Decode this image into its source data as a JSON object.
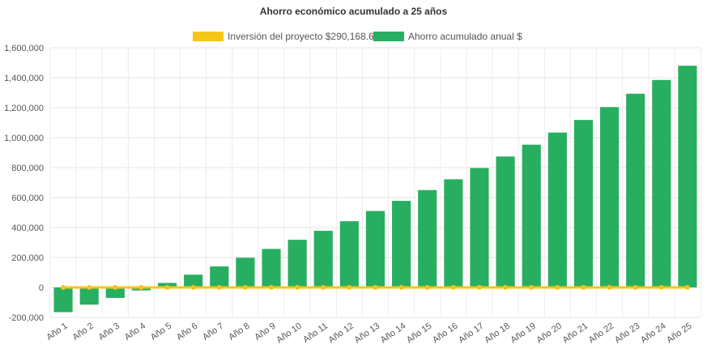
{
  "chart_data": {
    "type": "bar",
    "title": "Ahorro económico acumulado a 25 años",
    "categories": [
      "Año 1",
      "Año 2",
      "Año 3",
      "Año 4",
      "Año 5",
      "Año 6",
      "Año 7",
      "Año 8",
      "Año 9",
      "Año 10",
      "Año 11",
      "Año 12",
      "Año 13",
      "Año 14",
      "Año 15",
      "Año 16",
      "Año 17",
      "Año 18",
      "Año 19",
      "Año 20",
      "Año 21",
      "Año 22",
      "Año 23",
      "Año 24",
      "Año 25"
    ],
    "series": [
      {
        "name": "Inversión del proyecto $290,168.61",
        "kind": "line",
        "color": "#f5c518",
        "values": [
          0,
          0,
          0,
          0,
          0,
          0,
          0,
          0,
          0,
          0,
          0,
          0,
          0,
          0,
          0,
          0,
          0,
          0,
          0,
          0,
          0,
          0,
          0,
          0,
          0
        ]
      },
      {
        "name": "Ahorro acumulado anual $",
        "kind": "bar",
        "color": "#27ae60",
        "values": [
          -165000,
          -115000,
          -70000,
          -20000,
          30000,
          85000,
          140000,
          198000,
          257000,
          318000,
          378000,
          442000,
          510000,
          578000,
          650000,
          722000,
          797000,
          874000,
          953000,
          1034000,
          1118000,
          1204000,
          1293000,
          1385000,
          1480000
        ]
      }
    ],
    "ylim": [
      -200000,
      1600000
    ],
    "yticks": [
      -200000,
      0,
      200000,
      400000,
      600000,
      800000,
      1000000,
      1200000,
      1400000,
      1600000
    ],
    "ytick_labels": [
      "-200,000",
      "0",
      "200,000",
      "400,000",
      "600,000",
      "800,000",
      "1,000,000",
      "1,200,000",
      "1,400,000",
      "1,600,000"
    ],
    "grid": true,
    "legend_position": "top-center"
  }
}
